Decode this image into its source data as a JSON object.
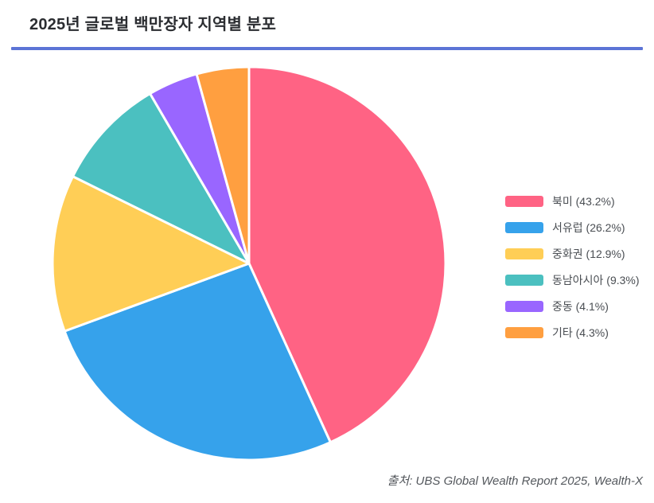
{
  "page": {
    "title": "2025년 글로벌 백만장자 지역별 분포",
    "source_note": "출처: UBS Global Wealth Report 2025, Wealth-X",
    "accent_underline_color": "#5C74D6",
    "background_color": "#ffffff",
    "title_color": "#2b2d31",
    "legend_text_color": "#4a4e53",
    "source_text_color": "#54585d"
  },
  "chart_data": {
    "type": "pie",
    "title": "2025년 글로벌 백만장자 지역별 분포",
    "direction": "clockwise",
    "start_angle_deg": 0,
    "legend_position": "right",
    "slice_border_color": "#ffffff",
    "slices": [
      {
        "label": "북미",
        "slug": "north-america",
        "value": 43.2,
        "color": "#FF6384",
        "legend_label": "북미 (43.2%)"
      },
      {
        "label": "서유럽",
        "slug": "western-europe",
        "value": 26.2,
        "color": "#36A2EB",
        "legend_label": "서유럽 (26.2%)"
      },
      {
        "label": "중화권",
        "slug": "greater-china",
        "value": 12.9,
        "color": "#FFCE56",
        "legend_label": "중화권 (12.9%)"
      },
      {
        "label": "동남아시아",
        "slug": "southeast-asia",
        "value": 9.3,
        "color": "#4BC0C0",
        "legend_label": "동남아시아 (9.3%)"
      },
      {
        "label": "중동",
        "slug": "middle-east",
        "value": 4.1,
        "color": "#9966FF",
        "legend_label": "중동 (4.1%)"
      },
      {
        "label": "기타",
        "slug": "others",
        "value": 4.3,
        "color": "#FF9F40",
        "legend_label": "기타 (4.3%)"
      }
    ],
    "source_note": "출처: UBS Global Wealth Report 2025, Wealth-X"
  }
}
